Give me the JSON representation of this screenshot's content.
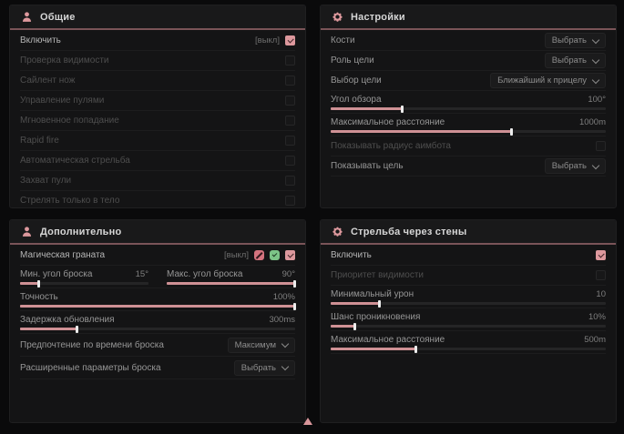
{
  "colors": {
    "accent": "#dd989d",
    "accent_muted": "#cf9195",
    "accent_dark": "#7a5458",
    "green": "#7cc487"
  },
  "icons": {
    "general_header": "person-icon",
    "settings_header": "gear-icon",
    "advanced_header": "person-icon",
    "wallbang_header": "gear-icon",
    "checkbox_check": "check-icon",
    "dropdown": "chevron-down-icon",
    "footer": "up-arrow-indicator"
  },
  "panels": {
    "general": {
      "title": "Общие",
      "enable": {
        "label": "Включить",
        "state": "[выкл]",
        "checked": true
      },
      "visibility_check": {
        "label": "Проверка видимости",
        "checked": false
      },
      "silent_knife": {
        "label": "Сайлент нож",
        "checked": false
      },
      "bullet_control": {
        "label": "Управление пулями",
        "checked": false
      },
      "instant_hit": {
        "label": "Мгновенное попадание",
        "checked": false
      },
      "rapid_fire": {
        "label": "Rapid fire",
        "checked": false
      },
      "auto_fire": {
        "label": "Автоматическая стрельба",
        "checked": false
      },
      "bullet_capture": {
        "label": "Захват пули",
        "checked": false
      },
      "body_only": {
        "label": "Стрелять только в тело",
        "checked": false
      }
    },
    "settings": {
      "title": "Настройки",
      "bones": {
        "label": "Кости",
        "value": "Выбрать"
      },
      "target_role": {
        "label": "Роль цели",
        "value": "Выбрать"
      },
      "target_select": {
        "label": "Выбор цели",
        "value": "Ближайший к прицелу"
      },
      "fov": {
        "label": "Угол обзора",
        "value": "100°",
        "fill": 26
      },
      "max_distance": {
        "label": "Максимальное расстояние",
        "value": "1000m",
        "fill": 66
      },
      "show_radius": {
        "label": "Показывать радиус аимбота",
        "checked": false
      },
      "show_target": {
        "label": "Показывать цель",
        "value": "Выбрать"
      }
    },
    "advanced": {
      "title": "Дополнительно",
      "magic_grenade": {
        "label": "Магическая граната",
        "state": "[выкл]",
        "checked": true
      },
      "min_throw_angle": {
        "label": "Мин. угол броска",
        "value": "15°",
        "fill": 15
      },
      "max_throw_angle": {
        "label": "Макс. угол броска",
        "value": "90°",
        "fill": 100
      },
      "accuracy": {
        "label": "Точность",
        "value": "100%",
        "fill": 100
      },
      "update_delay": {
        "label": "Задержка обновления",
        "value": "300ms",
        "fill": 21
      },
      "throw_time_pref": {
        "label": "Предпочтение по времени броска",
        "value": "Максимум"
      },
      "advanced_throw": {
        "label": "Расширенные параметры броска",
        "value": "Выбрать"
      }
    },
    "wallbang": {
      "title": "Стрельба через стены",
      "enable": {
        "label": "Включить",
        "checked": true
      },
      "visibility_priority": {
        "label": "Приоритет видимости",
        "checked": false
      },
      "min_damage": {
        "label": "Минимальный урон",
        "value": "10",
        "fill": 18
      },
      "penetration_chance": {
        "label": "Шанс проникновения",
        "value": "10%",
        "fill": 9
      },
      "max_distance": {
        "label": "Максимальное расстояние",
        "value": "500m",
        "fill": 31
      }
    }
  }
}
